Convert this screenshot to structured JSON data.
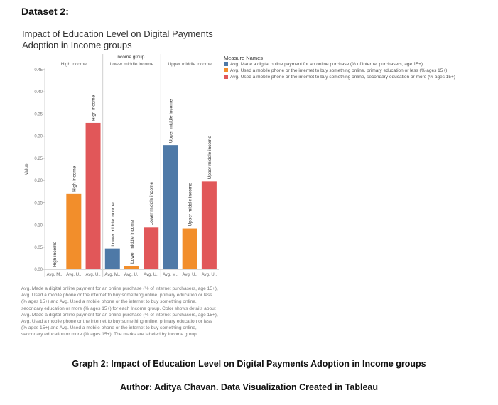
{
  "dataset_label": "Dataset 2:",
  "chart_title": "Impact of Education Level on Digital Payments Adoption in Income groups",
  "legend": {
    "title": "Measure Names",
    "items": [
      {
        "label": "Avg. Made a digital online payment for an online purchase (% of internet purchasers, age 15+)",
        "color": "#4e79a7"
      },
      {
        "label": "Avg. Used a mobile phone or the internet to buy something online, primary education or less (% ages 15+)",
        "color": "#f28e2b"
      },
      {
        "label": "Avg. Used a mobile phone or the internet to buy something online, secondary education or more (% ages 15+)",
        "color": "#e15759"
      }
    ]
  },
  "note": "Avg. Made a digital online payment for an online purchase (% of internet purchasers, age 15+), Avg. Used a mobile phone or the internet to buy something online, primary education or less (% ages 15+) and Avg. Used a mobile phone or the internet to buy something online, secondary education or more (% ages 15+) for each Income group. Color shows details about Avg. Made a digital online payment for an online purchase (% of internet purchasers, age 15+), Avg. Used a mobile phone or the internet to buy something online, primary education or less (% ages 15+) and Avg. Used a mobile phone or the internet to buy something online, secondary education or more (% ages 15+). The marks are labeled by Income group.",
  "caption": "Graph 2: Impact of Education Level on Digital Payments Adoption in Income groups",
  "author": "Author: Aditya Chavan. Data Visualization Created in Tableau",
  "chart_data": {
    "type": "bar",
    "column_header": "Income group",
    "groups": [
      "High income",
      "Lower middle income",
      "Upper middle income"
    ],
    "categories": [
      "Avg. M..",
      "Avg. U..",
      "Avg. U.."
    ],
    "series": [
      {
        "name": "Avg. Made a digital online payment for an online purchase (% of internet purchasers, age 15+)",
        "color": "#4e79a7",
        "values": [
          0.0,
          0.047,
          0.28
        ]
      },
      {
        "name": "Avg. Used a mobile phone or the internet to buy something online, primary education or less (% ages 15+)",
        "color": "#f28e2b",
        "values": [
          0.17,
          0.008,
          0.092
        ]
      },
      {
        "name": "Avg. Used a mobile phone or the internet to buy something online, secondary education or more (% ages 15+)",
        "color": "#e15759",
        "values": [
          0.33,
          0.094,
          0.198
        ]
      }
    ],
    "ylabel": "Value",
    "ylim": [
      0,
      0.45
    ],
    "yticks": [
      "0.00",
      "0.05",
      "0.10",
      "0.15",
      "0.20",
      "0.25",
      "0.30",
      "0.35",
      "0.40",
      "0.45"
    ],
    "mark_labels": [
      "High income",
      "High income",
      "High income",
      "Lower middle income",
      "Lower middle income",
      "Lower middle income",
      "Upper middle income",
      "Upper middle income",
      "Upper middle income"
    ],
    "grid": false
  }
}
